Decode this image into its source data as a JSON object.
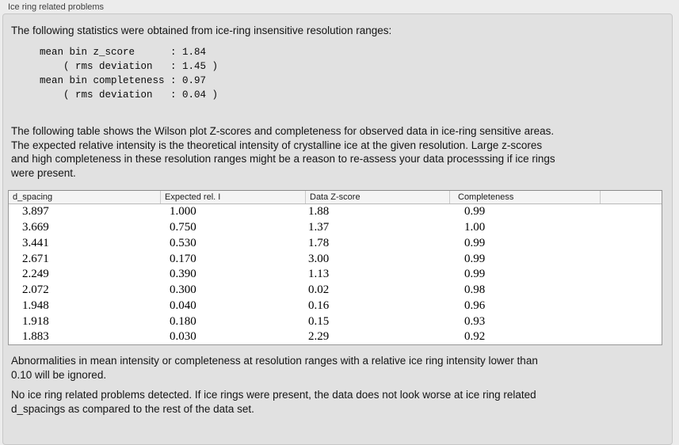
{
  "panel": {
    "title": "Ice ring related problems"
  },
  "intro": "The following statistics were obtained from ice-ring insensitive resolution ranges:",
  "stats_block": [
    "mean bin z_score      : 1.84",
    "    ( rms deviation   : 1.45 )",
    "mean bin completeness : 0.97",
    "    ( rms deviation   : 0.04 )"
  ],
  "description": [
    "The following table shows the Wilson plot Z-scores and completeness for observed data in ice-ring sensitive areas.",
    "The expected relative intensity is the theoretical intensity of crystalline ice at the given resolution. Large z-scores",
    "and high completeness in these resolution ranges might be a reason to re-assess your data processsing if ice rings",
    "were present."
  ],
  "table": {
    "headers": [
      "d_spacing",
      "Expected rel. I",
      "Data Z-score",
      "Completeness"
    ],
    "rows": [
      [
        "3.897",
        "1.000",
        "1.88",
        "0.99"
      ],
      [
        "3.669",
        "0.750",
        "1.37",
        "1.00"
      ],
      [
        "3.441",
        "0.530",
        "1.78",
        "0.99"
      ],
      [
        "2.671",
        "0.170",
        "3.00",
        "0.99"
      ],
      [
        "2.249",
        "0.390",
        "1.13",
        "0.99"
      ],
      [
        "2.072",
        "0.300",
        "0.02",
        "0.98"
      ],
      [
        "1.948",
        "0.040",
        "0.16",
        "0.96"
      ],
      [
        "1.918",
        "0.180",
        "0.15",
        "0.93"
      ],
      [
        "1.883",
        "0.030",
        "2.29",
        "0.92"
      ]
    ]
  },
  "note_ignore": [
    "Abnormalities in mean intensity or completeness at resolution ranges with a relative ice ring intensity lower than",
    "0.10 will be ignored."
  ],
  "conclusion": [
    "No ice ring related problems detected. If ice rings were present, the data does not look worse at ice ring related",
    "d_spacings as compared to the rest of the data set."
  ],
  "colors": {
    "page_bg": "#ececec",
    "panel_bg": "#e1e1e1",
    "panel_border": "#c7c7c7",
    "table_header_bg": "#f4f4f4",
    "table_border": "#979797",
    "title_text": "#3d3d3d"
  }
}
